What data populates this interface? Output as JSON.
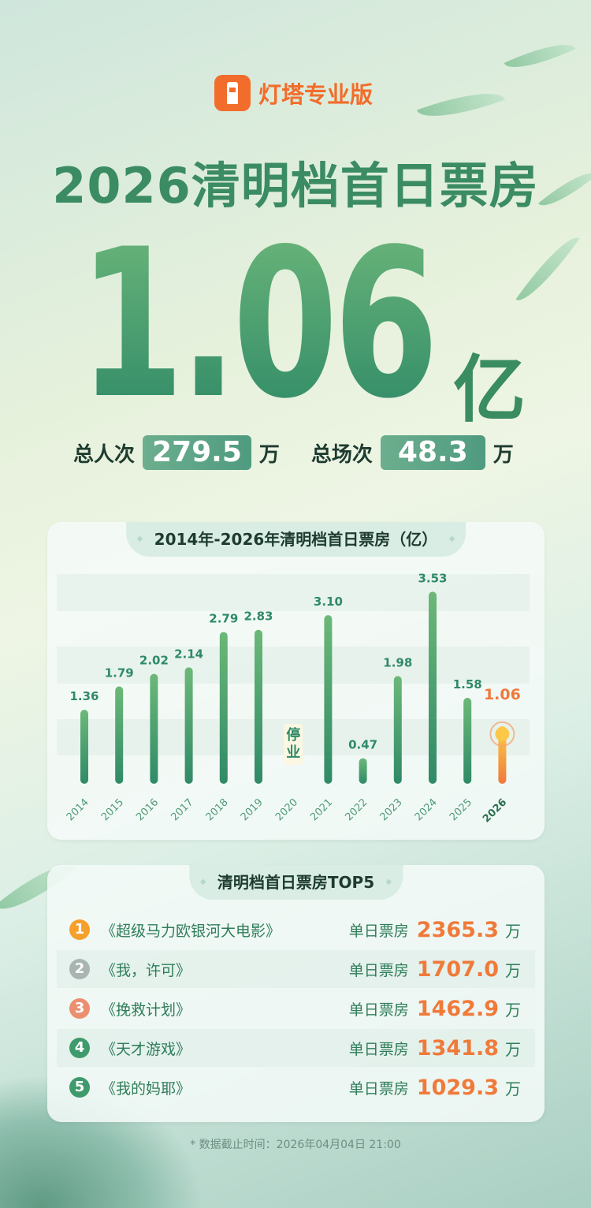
{
  "brand": {
    "name": "灯塔专业版",
    "color": "#f26d2b"
  },
  "headline": {
    "title": "2026清明档首日票房",
    "value": "1.06",
    "unit": "亿"
  },
  "stats": {
    "admissions_label": "总人次",
    "admissions_value": "279.5",
    "admissions_unit": "万",
    "shows_label": "总场次",
    "shows_value": "48.3",
    "shows_unit": "万"
  },
  "chart_data": {
    "type": "bar",
    "title": "2014年-2026年清明档首日票房（亿）",
    "categories": [
      "2014",
      "2015",
      "2016",
      "2017",
      "2018",
      "2019",
      "2020",
      "2021",
      "2022",
      "2023",
      "2024",
      "2025",
      "2026"
    ],
    "values": [
      1.36,
      1.79,
      2.02,
      2.14,
      2.79,
      2.83,
      null,
      3.1,
      0.47,
      1.98,
      3.53,
      1.58,
      1.06
    ],
    "labels": [
      "1.36",
      "1.79",
      "2.02",
      "2.14",
      "2.79",
      "2.83",
      "停业",
      "3.10",
      "0.47",
      "1.98",
      "3.53",
      "1.58",
      "1.06"
    ],
    "highlight": "2026",
    "ylim": [
      0,
      3.6
    ],
    "colors": {
      "bar": "#3d9a6e",
      "highlight": "#f07a3a"
    }
  },
  "top5": {
    "title": "清明档首日票房TOP5",
    "value_label": "单日票房",
    "unit": "万",
    "items": [
      {
        "rank": "1",
        "film": "《超级马力欧银河大电影》",
        "value": "2365.3",
        "color": "#f5a02a"
      },
      {
        "rank": "2",
        "film": "《我，许可》",
        "value": "1707.0",
        "color": "#a9b5b0"
      },
      {
        "rank": "3",
        "film": "《挽救计划》",
        "value": "1462.9",
        "color": "#ec8f70"
      },
      {
        "rank": "4",
        "film": "《天才游戏》",
        "value": "1341.8",
        "color": "#3f9a6c"
      },
      {
        "rank": "5",
        "film": "《我的妈耶》",
        "value": "1029.3",
        "color": "#3f9a6c"
      }
    ]
  },
  "footer": "* 数据截止时间：2026年04月04日 21:00"
}
